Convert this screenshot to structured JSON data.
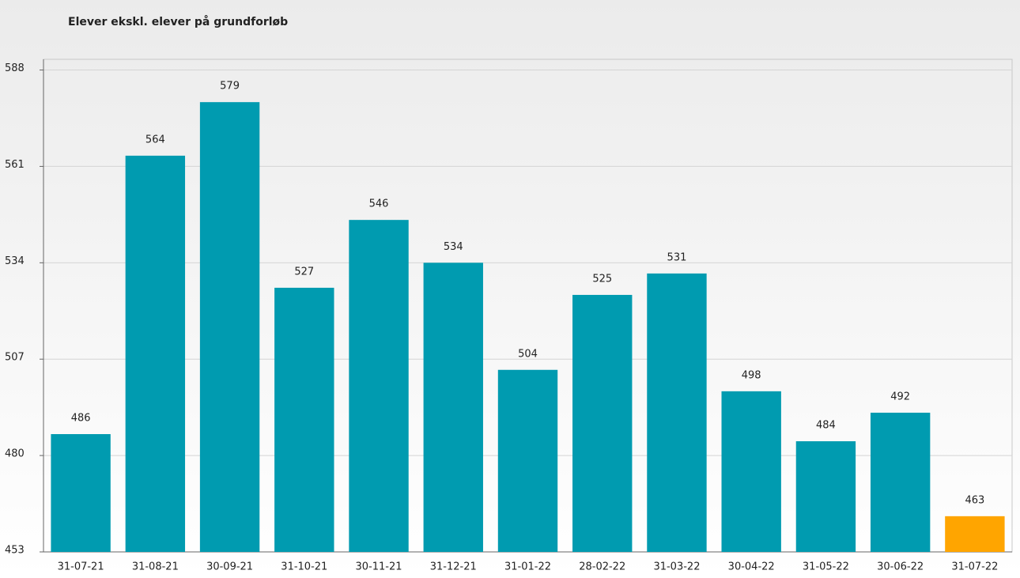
{
  "chart_data": {
    "type": "bar",
    "title": "Elever ekskl. elever på grundforløb",
    "categories": [
      "31-07-21",
      "31-08-21",
      "30-09-21",
      "31-10-21",
      "30-11-21",
      "31-12-21",
      "31-01-22",
      "28-02-22",
      "31-03-22",
      "30-04-22",
      "31-05-22",
      "30-06-22",
      "31-07-22"
    ],
    "values": [
      486,
      564,
      579,
      527,
      546,
      534,
      504,
      525,
      531,
      498,
      484,
      492,
      463
    ],
    "colors": [
      "#009bb0",
      "#009bb0",
      "#009bb0",
      "#009bb0",
      "#009bb0",
      "#009bb0",
      "#009bb0",
      "#009bb0",
      "#009bb0",
      "#009bb0",
      "#009bb0",
      "#009bb0",
      "#ffa500"
    ],
    "ylim": [
      453,
      591
    ],
    "yticks": [
      453,
      480,
      507,
      534,
      561,
      588
    ],
    "grid": true
  }
}
